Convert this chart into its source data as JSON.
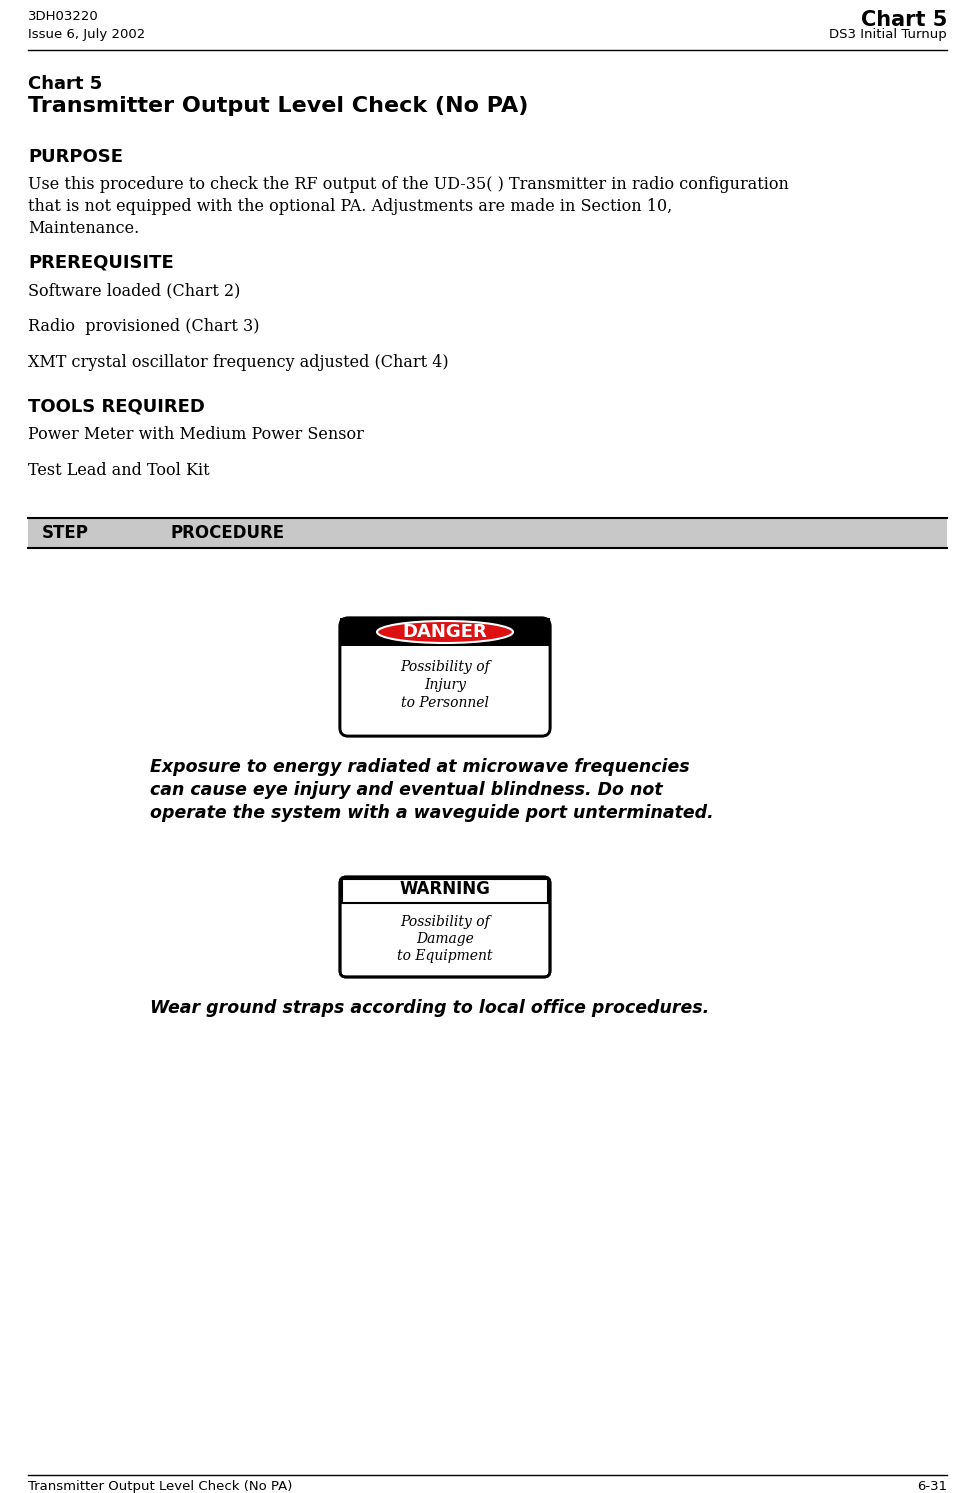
{
  "header_left_line1": "3DH03220",
  "header_left_line2": "Issue 6, July 2002",
  "header_right_line1": "Chart 5",
  "header_right_line2": "DS3 Initial Turnup",
  "title_line1": "Chart 5",
  "title_line2": "Transmitter Output Level Check (No PA)",
  "section_purpose": "PURPOSE",
  "purpose_text": "Use this procedure to check the RF output of the UD-35( ) Transmitter in radio configuration\nthat is not equipped with the optional PA. Adjustments are made in Section 10,\nMaintenance.",
  "section_prereq": "PREREQUISITE",
  "prereq_items": [
    "Software loaded (Chart 2)",
    "Radio  provisioned (Chart 3)",
    "XMT crystal oscillator frequency adjusted (Chart 4)"
  ],
  "section_tools": "TOOLS REQUIRED",
  "tools_items": [
    "Power Meter with Medium Power Sensor",
    "Test Lead and Tool Kit"
  ],
  "table_col1": "STEP",
  "table_col2": "PROCEDURE",
  "danger_label": "DANGER",
  "danger_sub_line1": "Possibility of",
  "danger_sub_line2": "Injury",
  "danger_sub_line3": "to Personnel",
  "danger_text_line1": "Exposure to energy radiated at microwave frequencies",
  "danger_text_line2": "can cause eye injury and eventual blindness. Do not",
  "danger_text_line3": "operate the system with a waveguide port unterminated.",
  "warning_label": "WARNING",
  "warning_sub_line1": "Possibility of",
  "warning_sub_line2": "Damage",
  "warning_sub_line3": "to Equipment",
  "warning_text": "Wear ground straps according to local office procedures.",
  "footer_left": "Transmitter Output Level Check (No PA)",
  "footer_right": "6-31",
  "bg_color": "#ffffff",
  "text_color": "#000000",
  "danger_red": "#dd1111",
  "header_line_color": "#000000"
}
